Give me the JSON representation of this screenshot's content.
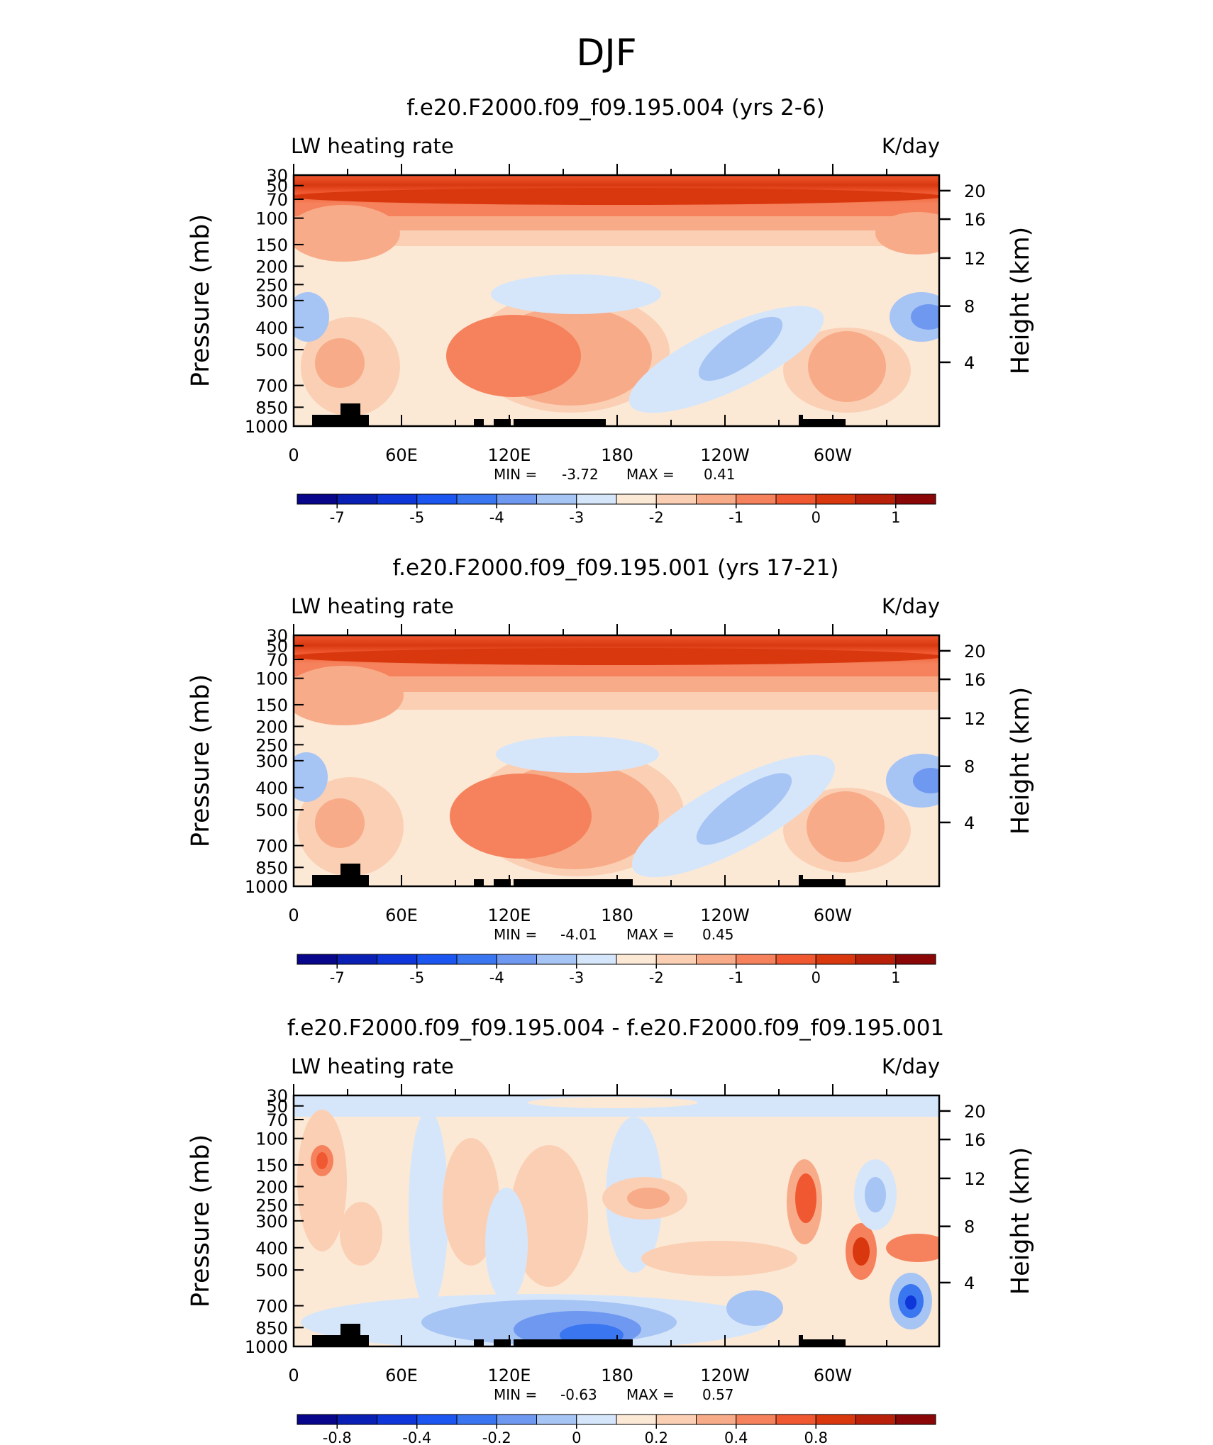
{
  "page_title": "DJF",
  "colors": {
    "frame": "#000000",
    "land": "#000000"
  },
  "colorbar_palette": [
    "#08068a",
    "#0a1fb4",
    "#0e36d8",
    "#1b56f0",
    "#3a76f0",
    "#6f98f0",
    "#a6c4f4",
    "#d6e6fa",
    "#fbe9d6",
    "#fbcfb4",
    "#f8ab88",
    "#f5825c",
    "#ef5830",
    "#d9380f",
    "#b8200a",
    "#8b0707"
  ],
  "chart_data": [
    {
      "type": "heatmap",
      "title": "f.e20.F2000.f09_f09.195.004 (yrs 2-6)",
      "left_label": "LW heating rate",
      "right_label": "K/day",
      "ylabel": "Pressure (mb)",
      "ylabel_right": "Height (km)",
      "pressure_ticks": [
        "30",
        "50",
        "70",
        "100",
        "150",
        "200",
        "250",
        "300",
        "400",
        "500",
        "700",
        "850",
        "1000"
      ],
      "height_ticks": [
        "20",
        "16",
        "12",
        "8",
        "4"
      ],
      "x_ticks": [
        "0",
        "60E",
        "120E",
        "180",
        "120W",
        "60W"
      ],
      "min_label": "MIN =",
      "min_value": "-3.72",
      "max_label": "MAX =",
      "max_value": "0.41",
      "colorbar_labels": [
        "-7",
        "-5",
        "-4",
        "-3",
        "-2",
        "-1",
        "0",
        "1"
      ],
      "colorbar_label_slots": [
        1,
        3,
        5,
        7,
        9,
        11,
        13,
        15
      ],
      "field_min": -3.72,
      "field_max": 0.41
    },
    {
      "type": "heatmap",
      "title": "f.e20.F2000.f09_f09.195.001 (yrs 17-21)",
      "left_label": "LW heating rate",
      "right_label": "K/day",
      "ylabel": "Pressure (mb)",
      "ylabel_right": "Height (km)",
      "pressure_ticks": [
        "30",
        "50",
        "70",
        "100",
        "150",
        "200",
        "250",
        "300",
        "400",
        "500",
        "700",
        "850",
        "1000"
      ],
      "height_ticks": [
        "20",
        "16",
        "12",
        "8",
        "4"
      ],
      "x_ticks": [
        "0",
        "60E",
        "120E",
        "180",
        "120W",
        "60W"
      ],
      "min_label": "MIN =",
      "min_value": "-4.01",
      "max_label": "MAX =",
      "max_value": "0.45",
      "colorbar_labels": [
        "-7",
        "-5",
        "-4",
        "-3",
        "-2",
        "-1",
        "0",
        "1"
      ],
      "colorbar_label_slots": [
        1,
        3,
        5,
        7,
        9,
        11,
        13,
        15
      ],
      "field_min": -4.01,
      "field_max": 0.45
    },
    {
      "type": "heatmap",
      "title": "f.e20.F2000.f09_f09.195.004 - f.e20.F2000.f09_f09.195.001",
      "left_label": "LW heating rate",
      "right_label": "K/day",
      "ylabel": "Pressure (mb)",
      "ylabel_right": "Height (km)",
      "pressure_ticks": [
        "30",
        "50",
        "70",
        "100",
        "150",
        "200",
        "250",
        "300",
        "400",
        "500",
        "700",
        "850",
        "1000"
      ],
      "height_ticks": [
        "20",
        "16",
        "12",
        "8",
        "4"
      ],
      "x_ticks": [
        "0",
        "60E",
        "120E",
        "180",
        "120W",
        "60W"
      ],
      "min_label": "MIN =",
      "min_value": "-0.63",
      "max_label": "MAX =",
      "max_value": "0.57",
      "colorbar_labels": [
        "-0.8",
        "-0.4",
        "-0.2",
        "0",
        "0.2",
        "0.4",
        "0.8"
      ],
      "colorbar_label_slots": [
        1,
        3,
        5,
        7,
        9,
        11,
        13
      ],
      "field_min": -0.63,
      "field_max": 0.57
    }
  ]
}
